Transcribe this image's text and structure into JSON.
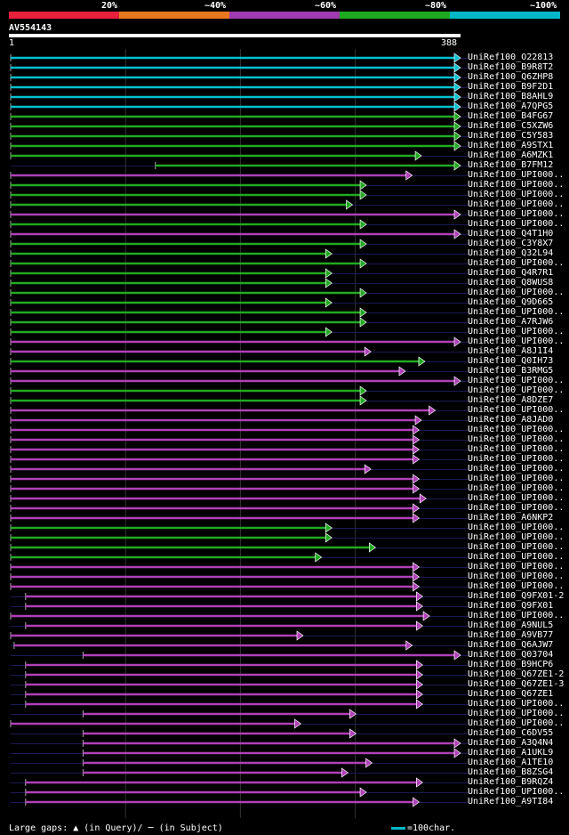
{
  "legend": {
    "labels": [
      "20%",
      "~40%",
      "~60%",
      "~80%",
      "~100%"
    ],
    "colors": [
      "#e8203a",
      "#e8781e",
      "#a03ab0",
      "#1eaa1e",
      "#00b8c8"
    ]
  },
  "query": {
    "name": "AV554143",
    "start": "1",
    "end": "388",
    "length": 388
  },
  "footer": {
    "gap_text": "Large gaps: ▲ (in Query)/ ─ (in Subject)",
    "scale_text": "=100char."
  },
  "hits": [
    {
      "label": "UniRef100_O22813",
      "start": 1,
      "end": 388,
      "color": "cyan"
    },
    {
      "label": "UniRef100_B9R8T2",
      "start": 1,
      "end": 388,
      "color": "cyan"
    },
    {
      "label": "UniRef100_Q6ZHP8",
      "start": 1,
      "end": 388,
      "color": "cyan"
    },
    {
      "label": "UniRef100_B9F2D1",
      "start": 1,
      "end": 388,
      "color": "cyan"
    },
    {
      "label": "UniRef100_B8AHL9",
      "start": 1,
      "end": 388,
      "color": "cyan"
    },
    {
      "label": "UniRef100_A7QPG5",
      "start": 1,
      "end": 388,
      "color": "cyan"
    },
    {
      "label": "UniRef100_B4FG67",
      "start": 1,
      "end": 388,
      "color": "green"
    },
    {
      "label": "UniRef100_C5XZW6",
      "start": 1,
      "end": 388,
      "color": "green"
    },
    {
      "label": "UniRef100_C5Y583",
      "start": 1,
      "end": 388,
      "color": "green"
    },
    {
      "label": "UniRef100_A9STX1",
      "start": 1,
      "end": 388,
      "color": "green"
    },
    {
      "label": "UniRef100_A6MZK1",
      "start": 1,
      "end": 354,
      "color": "green"
    },
    {
      "label": "UniRef100_B7FM12",
      "start": 127,
      "end": 388,
      "color": "green"
    },
    {
      "label": "UniRef100_UPI000..",
      "start": 1,
      "end": 346,
      "color": "magenta"
    },
    {
      "label": "UniRef100_UPI000..",
      "start": 1,
      "end": 306,
      "color": "green"
    },
    {
      "label": "UniRef100_UPI000..",
      "start": 1,
      "end": 306,
      "color": "green"
    },
    {
      "label": "UniRef100_UPI000..",
      "start": 1,
      "end": 294,
      "color": "green"
    },
    {
      "label": "UniRef100_UPI000..",
      "start": 1,
      "end": 388,
      "color": "magenta"
    },
    {
      "label": "UniRef100_UPI000..",
      "start": 1,
      "end": 306,
      "color": "green"
    },
    {
      "label": "UniRef100_Q4T1H0",
      "start": 1,
      "end": 388,
      "color": "magenta"
    },
    {
      "label": "UniRef100_C3Y8X7",
      "start": 1,
      "end": 306,
      "color": "green"
    },
    {
      "label": "UniRef100_Q32L94",
      "start": 1,
      "end": 276,
      "color": "green"
    },
    {
      "label": "UniRef100_UPI000..",
      "start": 1,
      "end": 306,
      "color": "green"
    },
    {
      "label": "UniRef100_Q4R7R1",
      "start": 1,
      "end": 276,
      "color": "green"
    },
    {
      "label": "UniRef100_Q8WUS8",
      "start": 1,
      "end": 276,
      "color": "green"
    },
    {
      "label": "UniRef100_UPI000..",
      "start": 1,
      "end": 306,
      "color": "green"
    },
    {
      "label": "UniRef100_Q9D665",
      "start": 1,
      "end": 276,
      "color": "green"
    },
    {
      "label": "UniRef100_UPI000..",
      "start": 1,
      "end": 306,
      "color": "green"
    },
    {
      "label": "UniRef100_A7RJW6",
      "start": 1,
      "end": 306,
      "color": "green"
    },
    {
      "label": "UniRef100_UPI000..",
      "start": 1,
      "end": 276,
      "color": "green"
    },
    {
      "label": "UniRef100_UPI000..",
      "start": 1,
      "end": 388,
      "color": "magenta"
    },
    {
      "label": "UniRef100_A8J1I4",
      "start": 1,
      "end": 310,
      "color": "magenta"
    },
    {
      "label": "UniRef100_Q0IH73",
      "start": 1,
      "end": 357,
      "color": "green"
    },
    {
      "label": "UniRef100_B3RMG5",
      "start": 1,
      "end": 340,
      "color": "magenta"
    },
    {
      "label": "UniRef100_UPI000..",
      "start": 1,
      "end": 388,
      "color": "magenta"
    },
    {
      "label": "UniRef100_UPI000..",
      "start": 1,
      "end": 306,
      "color": "green"
    },
    {
      "label": "UniRef100_A8DZE7",
      "start": 1,
      "end": 306,
      "color": "green"
    },
    {
      "label": "UniRef100_UPI000..",
      "start": 1,
      "end": 366,
      "color": "magenta"
    },
    {
      "label": "UniRef100_A8JAD0",
      "start": 1,
      "end": 354,
      "color": "magenta"
    },
    {
      "label": "UniRef100_UPI000..",
      "start": 1,
      "end": 352,
      "color": "magenta"
    },
    {
      "label": "UniRef100_UPI000..",
      "start": 1,
      "end": 352,
      "color": "magenta"
    },
    {
      "label": "UniRef100_UPI000..",
      "start": 1,
      "end": 352,
      "color": "magenta"
    },
    {
      "label": "UniRef100_UPI000..",
      "start": 1,
      "end": 352,
      "color": "magenta"
    },
    {
      "label": "UniRef100_UPI000..",
      "start": 1,
      "end": 310,
      "color": "magenta"
    },
    {
      "label": "UniRef100_UPI000..",
      "start": 1,
      "end": 352,
      "color": "magenta"
    },
    {
      "label": "UniRef100_UPI000..",
      "start": 1,
      "end": 352,
      "color": "magenta"
    },
    {
      "label": "UniRef100_UPI000..",
      "start": 1,
      "end": 358,
      "color": "magenta"
    },
    {
      "label": "UniRef100_UPI000..",
      "start": 1,
      "end": 352,
      "color": "magenta"
    },
    {
      "label": "UniRef100_A6NKP2",
      "start": 1,
      "end": 352,
      "color": "magenta"
    },
    {
      "label": "UniRef100_UPI000..",
      "start": 1,
      "end": 276,
      "color": "green"
    },
    {
      "label": "UniRef100_UPI000..",
      "start": 1,
      "end": 276,
      "color": "green"
    },
    {
      "label": "UniRef100_UPI000..",
      "start": 1,
      "end": 314,
      "color": "green"
    },
    {
      "label": "UniRef100_UPI000..",
      "start": 1,
      "end": 267,
      "color": "green"
    },
    {
      "label": "UniRef100_UPI000..",
      "start": 1,
      "end": 352,
      "color": "magenta"
    },
    {
      "label": "UniRef100_UPI000..",
      "start": 1,
      "end": 352,
      "color": "magenta"
    },
    {
      "label": "UniRef100_UPI000..",
      "start": 1,
      "end": 352,
      "color": "magenta"
    },
    {
      "label": "UniRef100_Q9FX01-2",
      "start": 14,
      "end": 355,
      "color": "magenta"
    },
    {
      "label": "UniRef100_Q9FX01",
      "start": 14,
      "end": 355,
      "color": "magenta"
    },
    {
      "label": "UniRef100_UPI000..",
      "start": 1,
      "end": 361,
      "color": "magenta"
    },
    {
      "label": "UniRef100_A9NUL5",
      "start": 14,
      "end": 355,
      "color": "magenta"
    },
    {
      "label": "UniRef100_A9VB77",
      "start": 1,
      "end": 251,
      "color": "magenta"
    },
    {
      "label": "UniRef100_Q6AJW7",
      "start": 4,
      "end": 346,
      "color": "magenta"
    },
    {
      "label": "UniRef100_Q03704",
      "start": 64,
      "end": 388,
      "color": "magenta"
    },
    {
      "label": "UniRef100_B9HCP6",
      "start": 14,
      "end": 355,
      "color": "magenta"
    },
    {
      "label": "UniRef100_Q67ZE1-2",
      "start": 14,
      "end": 355,
      "color": "magenta"
    },
    {
      "label": "UniRef100_Q67ZE1-3",
      "start": 14,
      "end": 355,
      "color": "magenta"
    },
    {
      "label": "UniRef100_Q67ZE1",
      "start": 14,
      "end": 355,
      "color": "magenta"
    },
    {
      "label": "UniRef100_UPI000..",
      "start": 14,
      "end": 355,
      "color": "magenta"
    },
    {
      "label": "UniRef100_UPI000..",
      "start": 64,
      "end": 297,
      "color": "magenta"
    },
    {
      "label": "UniRef100_UPI000..",
      "start": 1,
      "end": 249,
      "color": "magenta"
    },
    {
      "label": "UniRef100_C6DV55",
      "start": 64,
      "end": 297,
      "color": "magenta"
    },
    {
      "label": "UniRef100_A3Q4N4",
      "start": 64,
      "end": 388,
      "color": "magenta"
    },
    {
      "label": "UniRef100_A1UKL9",
      "start": 64,
      "end": 388,
      "color": "magenta"
    },
    {
      "label": "UniRef100_A1TE10",
      "start": 64,
      "end": 311,
      "color": "magenta"
    },
    {
      "label": "UniRef100_B8ZSG4",
      "start": 64,
      "end": 290,
      "color": "magenta"
    },
    {
      "label": "UniRef100_B9RQZ4",
      "start": 14,
      "end": 355,
      "color": "magenta"
    },
    {
      "label": "UniRef100_UPI000..",
      "start": 14,
      "end": 306,
      "color": "magenta"
    },
    {
      "label": "UniRef100_A9TI84",
      "start": 14,
      "end": 352,
      "color": "magenta"
    }
  ]
}
